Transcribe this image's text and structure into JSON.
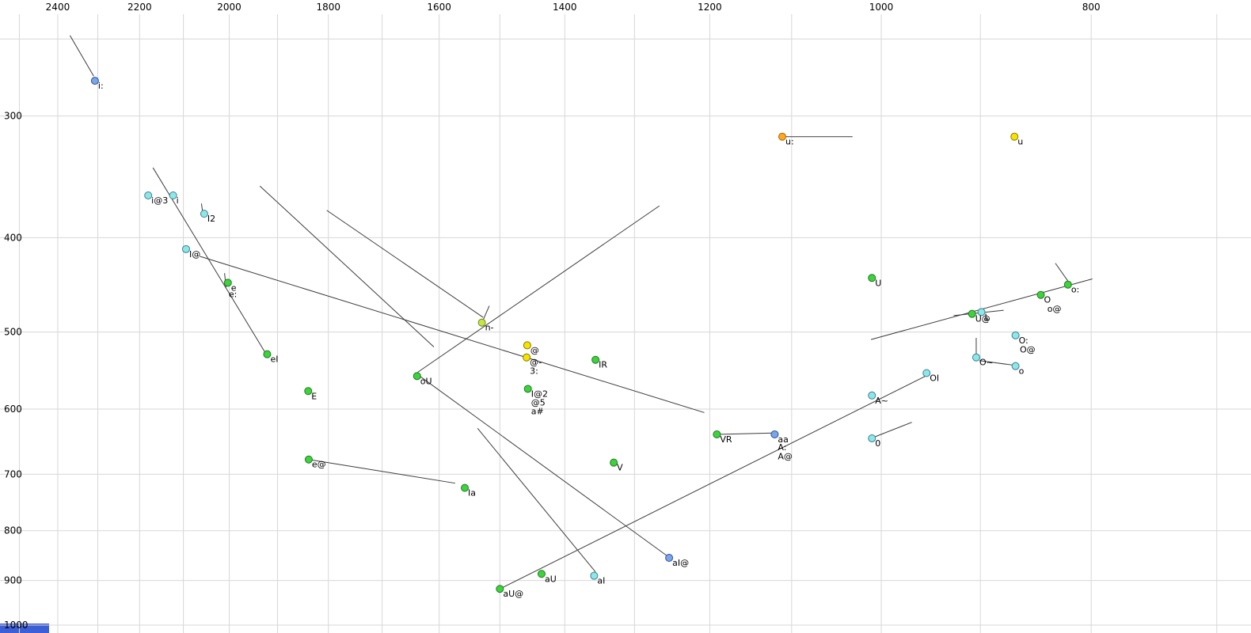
{
  "window": {
    "background": "#ffffff"
  },
  "corner_accent": {
    "color": "#3d5fd6"
  },
  "chart_data": {
    "type": "scatter",
    "description": "Vowel formant scatter plot, F2 (Hz, reversed log x-axis, labels on top) vs F1 (Hz, log y-axis increasing downward, labels on left), phoneme-labelled points with trajectory lines",
    "x_axis": {
      "unit": "Hz",
      "scale": "log",
      "reversed": true,
      "domain": [
        2552,
        675
      ],
      "tick_values": [
        2400,
        2200,
        2000,
        1800,
        1600,
        1400,
        1200,
        1000,
        800
      ],
      "tick_labels": [
        "2400",
        "2200",
        "2000",
        "1800",
        "1600",
        "1400",
        "1200",
        "1000",
        "800"
      ],
      "grid_values": [
        2500,
        2400,
        2300,
        2200,
        2100,
        2000,
        1900,
        1800,
        1700,
        1600,
        1500,
        1400,
        1300,
        1200,
        1100,
        1000,
        900,
        800,
        700
      ],
      "grid": true
    },
    "y_axis": {
      "unit": "Hz",
      "scale": "log",
      "domain": [
        228,
        1019
      ],
      "tick_values": [
        300,
        400,
        500,
        600,
        700,
        800,
        900,
        1000
      ],
      "tick_labels": [
        "300",
        "400",
        "500",
        "600",
        "700",
        "800",
        "900",
        "1000"
      ],
      "grid_values": [
        250,
        300,
        400,
        500,
        600,
        700,
        800,
        900,
        1000
      ],
      "grid": true
    },
    "palette": {
      "green": {
        "fill": "#3ed23e",
        "stroke": "#1f7a1f"
      },
      "cyan": {
        "fill": "#8fe8e0",
        "stroke": "#3a7ca5"
      },
      "blue": {
        "fill": "#7aa6e8",
        "stroke": "#2b4f9e"
      },
      "yellow": {
        "fill": "#f5e400",
        "stroke": "#8a7a00"
      },
      "orange": {
        "fill": "#ffa722",
        "stroke": "#a66a00"
      },
      "yellowgreen": {
        "fill": "#c5e544",
        "stroke": "#6e8a1f"
      },
      "grid_color": "#d7d7d7",
      "segment_color": "#3c3c3c",
      "text_color": "#000000"
    },
    "points": [
      {
        "label": "i:",
        "f2": 2307,
        "f1": 276,
        "color": "blue"
      },
      {
        "label": "i@3",
        "f2": 2180,
        "f1": 362,
        "color": "cyan"
      },
      {
        "label": "i",
        "f2": 2123,
        "f1": 362,
        "color": "cyan"
      },
      {
        "label": "I2",
        "f2": 2054,
        "f1": 378,
        "color": "cyan"
      },
      {
        "label": "I@",
        "f2": 2094,
        "f1": 411,
        "color": "cyan"
      },
      {
        "label": "e",
        "f2": 2003,
        "f1": 445,
        "color": "green"
      },
      {
        "label": "e:",
        "f2": 2008,
        "f1": 452,
        "color": "green",
        "marker": false
      },
      {
        "label": "eI",
        "f2": 1921,
        "f1": 527,
        "color": "green"
      },
      {
        "label": "E",
        "f2": 1839,
        "f1": 575,
        "color": "green"
      },
      {
        "label": "e@",
        "f2": 1838,
        "f1": 676,
        "color": "green"
      },
      {
        "label": "Ia",
        "f2": 1557,
        "f1": 723,
        "color": "green"
      },
      {
        "label": "oU",
        "f2": 1638,
        "f1": 555,
        "color": "green"
      },
      {
        "label": "n-",
        "f2": 1529,
        "f1": 489,
        "color": "yellowgreen"
      },
      {
        "label": "@",
        "f2": 1457,
        "f1": 516,
        "color": "yellow"
      },
      {
        "label": "@-",
        "f2": 1458,
        "f1": 531,
        "color": "yellow"
      },
      {
        "label": "3:",
        "f2": 1458,
        "f1": 542,
        "color": "yellow",
        "marker": false
      },
      {
        "label": "IR",
        "f2": 1355,
        "f1": 534,
        "color": "green"
      },
      {
        "label": "I@2",
        "f2": 1456,
        "f1": 572,
        "color": "green"
      },
      {
        "label": "@5",
        "f2": 1456,
        "f1": 584,
        "color": "green",
        "marker": false
      },
      {
        "label": "a#",
        "f2": 1456,
        "f1": 596,
        "color": "green",
        "marker": false
      },
      {
        "label": "V",
        "f2": 1329,
        "f1": 681,
        "color": "green"
      },
      {
        "label": "VR",
        "f2": 1191,
        "f1": 637,
        "color": "green"
      },
      {
        "label": "aa",
        "f2": 1120,
        "f1": 637,
        "color": "blue"
      },
      {
        "label": "A:",
        "f2": 1120,
        "f1": 649,
        "color": "blue",
        "marker": false
      },
      {
        "label": "A@",
        "f2": 1120,
        "f1": 663,
        "color": "blue",
        "marker": false
      },
      {
        "label": "u:",
        "f2": 1111,
        "f1": 315,
        "color": "orange"
      },
      {
        "label": "u",
        "f2": 868,
        "f1": 315,
        "color": "yellow"
      },
      {
        "label": "U",
        "f2": 1010,
        "f1": 440,
        "color": "green"
      },
      {
        "label": "A~",
        "f2": 1010,
        "f1": 581,
        "color": "cyan"
      },
      {
        "label": "0",
        "f2": 1010,
        "f1": 643,
        "color": "cyan"
      },
      {
        "label": "OI",
        "f2": 953,
        "f1": 551,
        "color": "cyan"
      },
      {
        "label": "U@",
        "f2": 908,
        "f1": 479,
        "color": "green"
      },
      {
        "label": "L",
        "f2": 899,
        "f1": 477,
        "color": "cyan"
      },
      {
        "label": "O",
        "f2": 844,
        "f1": 458,
        "color": "green"
      },
      {
        "label": "o@",
        "f2": 841,
        "f1": 468,
        "color": "green",
        "marker": false
      },
      {
        "label": "o:",
        "f2": 820,
        "f1": 447,
        "color": "green"
      },
      {
        "label": "O:",
        "f2": 867,
        "f1": 504,
        "color": "cyan"
      },
      {
        "label": "O@",
        "f2": 866,
        "f1": 515,
        "color": "cyan",
        "marker": false
      },
      {
        "label": "O~",
        "f2": 904,
        "f1": 531,
        "color": "cyan"
      },
      {
        "label": "o",
        "f2": 867,
        "f1": 542,
        "color": "cyan"
      },
      {
        "label": "aI@",
        "f2": 1253,
        "f1": 853,
        "color": "blue"
      },
      {
        "label": "aU",
        "f2": 1435,
        "f1": 886,
        "color": "green"
      },
      {
        "label": "aI",
        "f2": 1357,
        "f1": 890,
        "color": "cyan"
      },
      {
        "label": "aU@",
        "f2": 1500,
        "f1": 918,
        "color": "green"
      }
    ],
    "segments": [
      [
        2369,
        248,
        2310,
        273
      ],
      [
        2169,
        339,
        1925,
        525
      ],
      [
        1936,
        354,
        1609,
        518
      ],
      [
        1803,
        375,
        1527,
        483
      ],
      [
        1266,
        371,
        1637,
        550
      ],
      [
        2064,
        418,
        1207,
        605
      ],
      [
        1637,
        553,
        1253,
        852
      ],
      [
        1536,
        628,
        1355,
        882
      ],
      [
        1838,
        676,
        1573,
        715
      ],
      [
        1497,
        916,
        951,
        553
      ],
      [
        1191,
        637,
        1122,
        635
      ],
      [
        1111,
        315,
        1031,
        315
      ],
      [
        1011,
        643,
        968,
        619
      ],
      [
        926,
        481,
        878,
        475
      ],
      [
        831,
        425,
        819,
        445
      ],
      [
        799,
        441,
        1011,
        509
      ],
      [
        904,
        507,
        904,
        530
      ],
      [
        901,
        535,
        868,
        541
      ],
      [
        2060,
        369,
        2057,
        378
      ],
      [
        2010,
        435,
        2007,
        450
      ],
      [
        1517,
        470,
        1527,
        486
      ]
    ]
  }
}
